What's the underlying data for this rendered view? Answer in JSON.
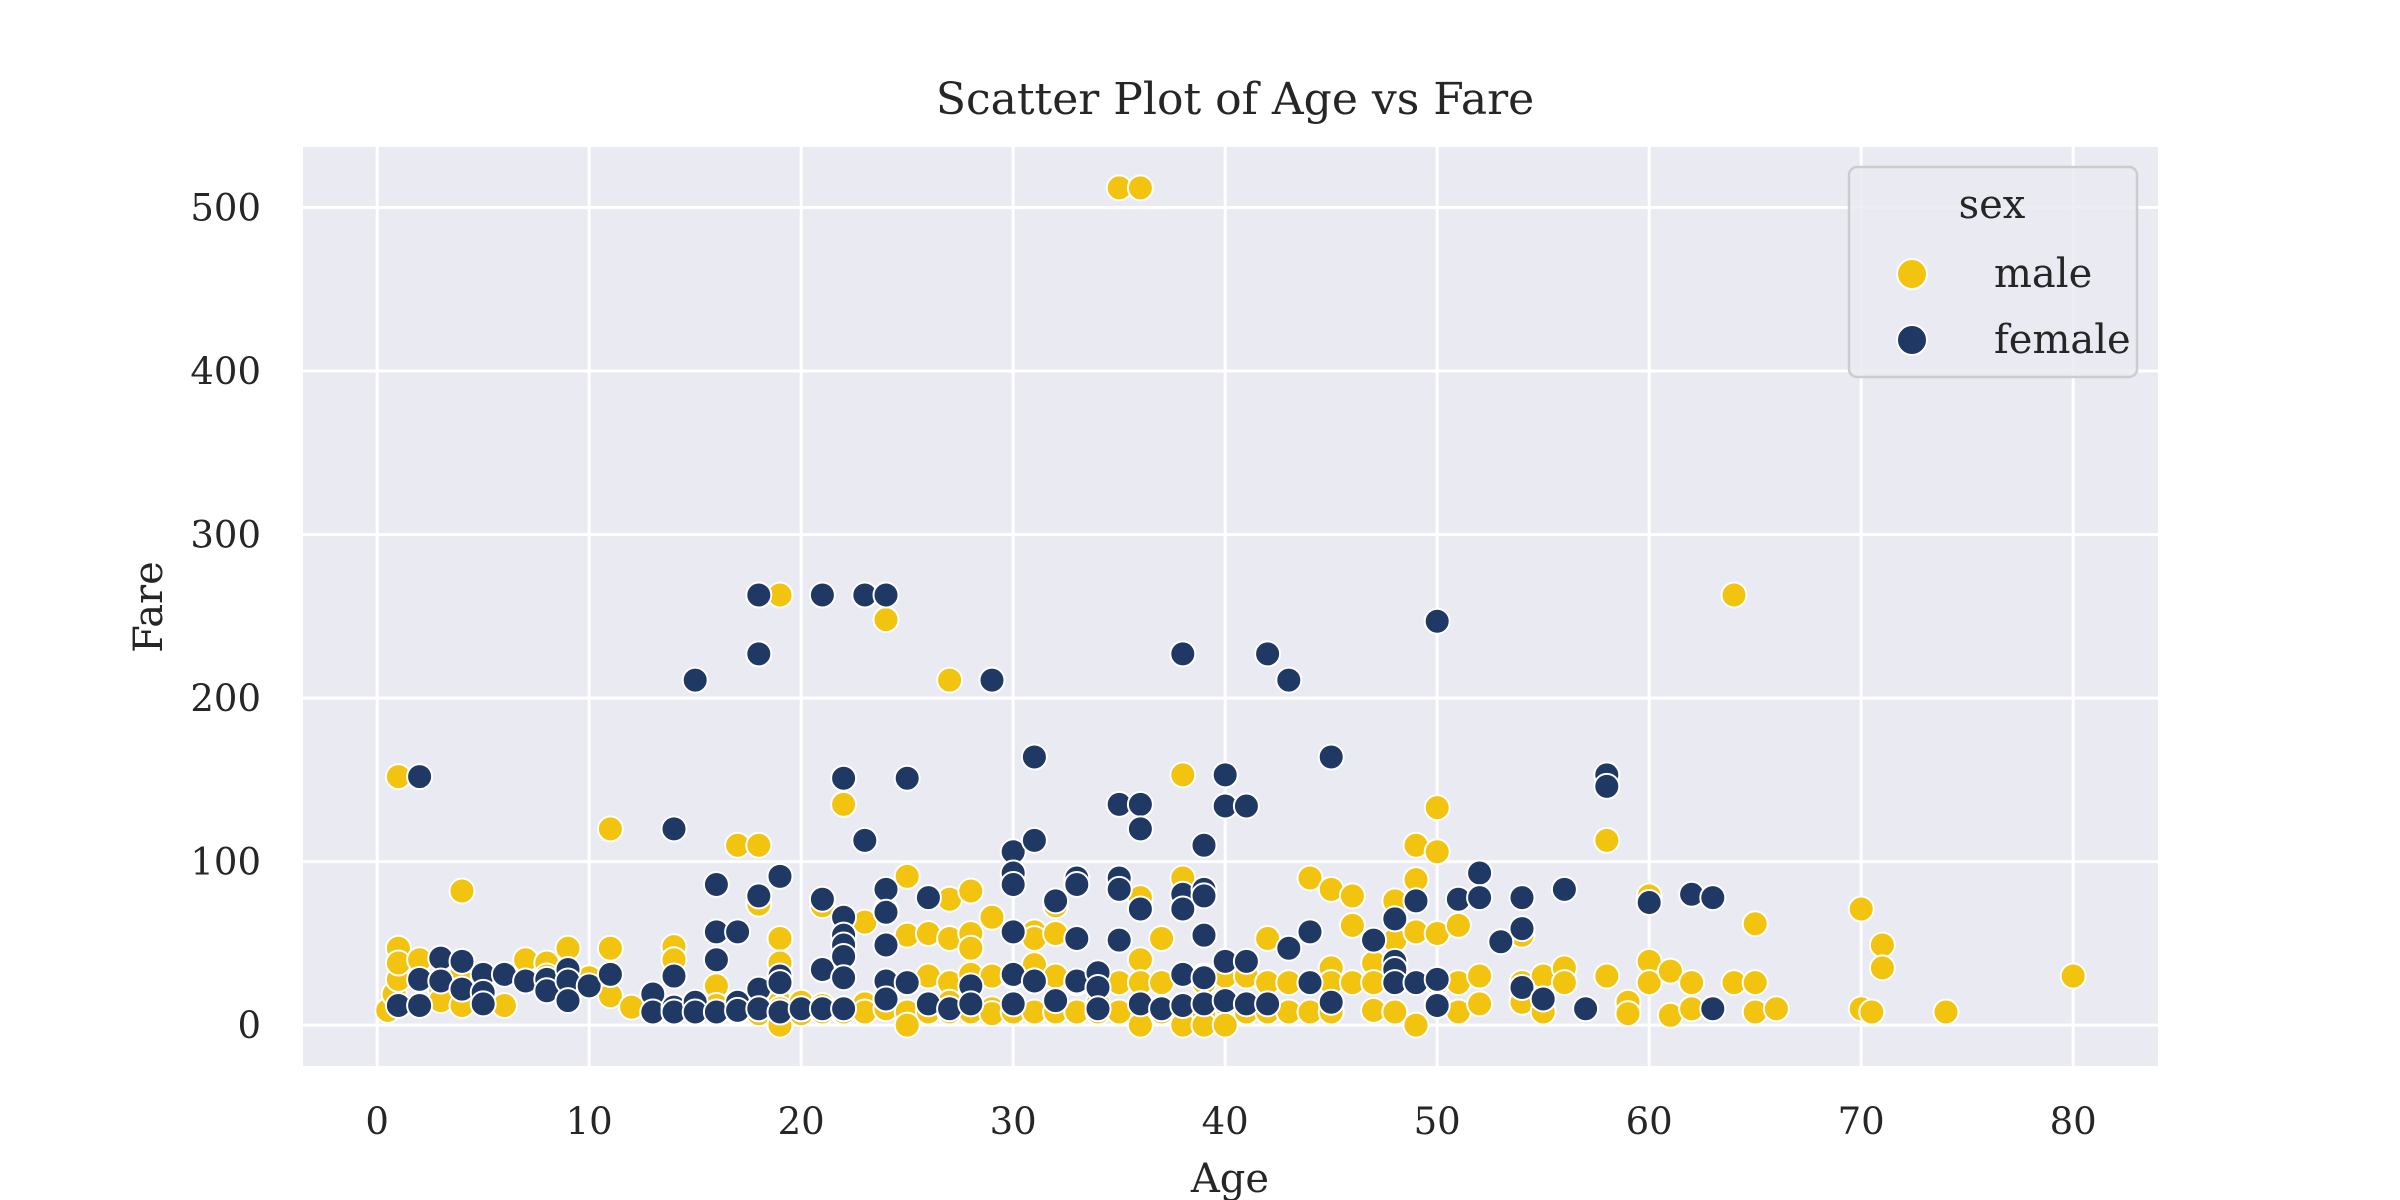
{
  "chart_data": {
    "type": "scatter",
    "title": "Scatter Plot of Age vs Fare",
    "xlabel": "Age",
    "ylabel": "Fare",
    "xlim": [
      -3.5,
      84
    ],
    "ylim": [
      -25,
      537
    ],
    "xticks": [
      0,
      10,
      20,
      30,
      40,
      50,
      60,
      70,
      80
    ],
    "yticks": [
      0,
      100,
      200,
      300,
      400,
      500
    ],
    "grid": true,
    "legend": {
      "title": "sex",
      "placement": "top-right"
    },
    "series": [
      {
        "name": "male",
        "color": "#F2C40F",
        "points": [
          [
            0.5,
            9
          ],
          [
            0.8,
            19
          ],
          [
            1,
            28
          ],
          [
            1,
            47
          ],
          [
            1,
            38
          ],
          [
            1,
            152
          ],
          [
            2,
            40
          ],
          [
            3,
            21
          ],
          [
            3,
            15
          ],
          [
            4,
            32
          ],
          [
            4,
            12
          ],
          [
            4,
            82
          ],
          [
            6,
            12
          ],
          [
            7,
            40
          ],
          [
            8,
            38
          ],
          [
            8,
            30
          ],
          [
            9,
            47
          ],
          [
            10,
            29
          ],
          [
            11,
            47
          ],
          [
            11,
            120
          ],
          [
            11,
            18
          ],
          [
            12,
            11
          ],
          [
            14,
            48
          ],
          [
            14,
            40
          ],
          [
            16,
            24
          ],
          [
            16,
            12
          ],
          [
            16,
            8
          ],
          [
            17,
            110
          ],
          [
            17,
            8
          ],
          [
            18,
            110
          ],
          [
            18,
            74
          ],
          [
            18,
            7
          ],
          [
            18,
            10
          ],
          [
            19,
            263
          ],
          [
            19,
            53
          ],
          [
            19,
            38
          ],
          [
            19,
            14
          ],
          [
            19,
            10
          ],
          [
            19,
            8
          ],
          [
            19,
            0
          ],
          [
            20,
            7
          ],
          [
            20,
            14
          ],
          [
            20,
            10
          ],
          [
            21,
            73
          ],
          [
            21,
            12
          ],
          [
            21,
            8
          ],
          [
            22,
            135
          ],
          [
            22,
            10
          ],
          [
            22,
            8
          ],
          [
            23,
            63
          ],
          [
            23,
            13
          ],
          [
            23,
            8
          ],
          [
            24,
            248
          ],
          [
            24,
            70
          ],
          [
            24,
            10
          ],
          [
            24,
            16
          ],
          [
            25,
            91
          ],
          [
            25,
            55
          ],
          [
            25,
            26
          ],
          [
            25,
            8
          ],
          [
            25,
            0
          ],
          [
            26,
            56
          ],
          [
            26,
            30
          ],
          [
            26,
            8
          ],
          [
            27,
            211
          ],
          [
            27,
            77
          ],
          [
            27,
            53
          ],
          [
            27,
            26
          ],
          [
            27,
            14
          ],
          [
            27,
            8
          ],
          [
            28,
            82
          ],
          [
            28,
            56
          ],
          [
            28,
            47
          ],
          [
            28,
            31
          ],
          [
            28,
            13
          ],
          [
            28,
            8
          ],
          [
            29,
            66
          ],
          [
            29,
            30
          ],
          [
            29,
            10
          ],
          [
            29,
            7
          ],
          [
            30,
            30
          ],
          [
            30,
            13
          ],
          [
            30,
            8
          ],
          [
            31,
            57
          ],
          [
            31,
            53
          ],
          [
            31,
            37
          ],
          [
            31,
            27
          ],
          [
            31,
            8
          ],
          [
            32,
            73
          ],
          [
            32,
            56
          ],
          [
            32,
            30
          ],
          [
            32,
            8
          ],
          [
            33,
            26
          ],
          [
            33,
            8
          ],
          [
            34,
            26
          ],
          [
            34,
            13
          ],
          [
            34,
            8
          ],
          [
            35,
            512
          ],
          [
            35,
            26
          ],
          [
            35,
            8
          ],
          [
            36,
            512
          ],
          [
            36,
            78
          ],
          [
            36,
            40
          ],
          [
            36,
            26
          ],
          [
            36,
            13
          ],
          [
            36,
            0
          ],
          [
            37,
            53
          ],
          [
            37,
            26
          ],
          [
            37,
            8
          ],
          [
            38,
            153
          ],
          [
            38,
            90
          ],
          [
            38,
            8
          ],
          [
            38,
            0
          ],
          [
            39,
            30
          ],
          [
            39,
            26
          ],
          [
            39,
            8
          ],
          [
            39,
            0
          ],
          [
            40,
            30
          ],
          [
            40,
            13
          ],
          [
            40,
            0
          ],
          [
            41,
            30
          ],
          [
            41,
            8
          ],
          [
            42,
            53
          ],
          [
            42,
            26
          ],
          [
            42,
            8
          ],
          [
            43,
            26
          ],
          [
            43,
            8
          ],
          [
            44,
            90
          ],
          [
            44,
            26
          ],
          [
            44,
            8
          ],
          [
            45,
            83
          ],
          [
            45,
            35
          ],
          [
            45,
            26
          ],
          [
            45,
            8
          ],
          [
            46,
            79
          ],
          [
            46,
            61
          ],
          [
            46,
            26
          ],
          [
            47,
            38
          ],
          [
            47,
            26
          ],
          [
            47,
            9
          ],
          [
            48,
            76
          ],
          [
            48,
            52
          ],
          [
            48,
            26
          ],
          [
            48,
            8
          ],
          [
            49,
            110
          ],
          [
            49,
            89
          ],
          [
            49,
            57
          ],
          [
            49,
            0
          ],
          [
            50,
            133
          ],
          [
            50,
            106
          ],
          [
            50,
            56
          ],
          [
            50,
            26
          ],
          [
            50,
            13
          ],
          [
            51,
            61
          ],
          [
            51,
            26
          ],
          [
            51,
            8
          ],
          [
            52,
            30
          ],
          [
            52,
            13
          ],
          [
            54,
            55
          ],
          [
            54,
            26
          ],
          [
            54,
            14
          ],
          [
            55,
            30
          ],
          [
            55,
            16
          ],
          [
            55,
            8
          ],
          [
            56,
            35
          ],
          [
            56,
            26
          ],
          [
            58,
            113
          ],
          [
            58,
            30
          ],
          [
            59,
            14
          ],
          [
            59,
            7
          ],
          [
            60,
            79
          ],
          [
            60,
            39
          ],
          [
            60,
            26
          ],
          [
            61,
            33
          ],
          [
            61,
            6
          ],
          [
            62,
            26
          ],
          [
            62,
            10
          ],
          [
            64,
            263
          ],
          [
            64,
            26
          ],
          [
            65,
            62
          ],
          [
            65,
            26
          ],
          [
            65,
            8
          ],
          [
            66,
            10
          ],
          [
            70,
            71
          ],
          [
            70,
            10
          ],
          [
            70.5,
            8
          ],
          [
            71,
            49
          ],
          [
            71,
            35
          ],
          [
            74,
            8
          ],
          [
            80,
            30
          ]
        ]
      },
      {
        "name": "female",
        "color": "#203864",
        "points": [
          [
            1,
            12
          ],
          [
            2,
            152
          ],
          [
            2,
            28
          ],
          [
            2,
            12
          ],
          [
            3,
            41
          ],
          [
            3,
            27
          ],
          [
            4,
            39
          ],
          [
            4,
            22
          ],
          [
            5,
            31
          ],
          [
            5,
            20
          ],
          [
            5,
            13
          ],
          [
            6,
            31
          ],
          [
            7,
            27
          ],
          [
            8,
            28
          ],
          [
            8,
            21
          ],
          [
            9,
            34
          ],
          [
            9,
            27
          ],
          [
            9,
            15
          ],
          [
            10,
            24
          ],
          [
            11,
            31
          ],
          [
            13,
            19
          ],
          [
            13,
            8
          ],
          [
            14,
            120
          ],
          [
            14,
            30
          ],
          [
            14,
            11
          ],
          [
            14,
            8
          ],
          [
            15,
            211
          ],
          [
            15,
            14
          ],
          [
            15,
            8
          ],
          [
            16,
            86
          ],
          [
            16,
            57
          ],
          [
            16,
            40
          ],
          [
            16,
            8
          ],
          [
            17,
            57
          ],
          [
            17,
            14
          ],
          [
            17,
            9
          ],
          [
            18,
            263
          ],
          [
            18,
            227
          ],
          [
            18,
            79
          ],
          [
            18,
            22
          ],
          [
            18,
            10
          ],
          [
            19,
            91
          ],
          [
            19,
            30
          ],
          [
            19,
            26
          ],
          [
            19,
            8
          ],
          [
            20,
            10
          ],
          [
            21,
            263
          ],
          [
            21,
            77
          ],
          [
            21,
            34
          ],
          [
            21,
            10
          ],
          [
            22,
            151
          ],
          [
            22,
            66
          ],
          [
            22,
            55
          ],
          [
            22,
            49
          ],
          [
            22,
            42
          ],
          [
            22,
            29
          ],
          [
            22,
            10
          ],
          [
            23,
            263
          ],
          [
            23,
            113
          ],
          [
            24,
            263
          ],
          [
            24,
            83
          ],
          [
            24,
            69
          ],
          [
            24,
            49
          ],
          [
            24,
            27
          ],
          [
            24,
            16
          ],
          [
            25,
            151
          ],
          [
            25,
            26
          ],
          [
            26,
            78
          ],
          [
            26,
            13
          ],
          [
            27,
            10
          ],
          [
            28,
            24
          ],
          [
            28,
            13
          ],
          [
            29,
            211
          ],
          [
            30,
            106
          ],
          [
            30,
            93
          ],
          [
            30,
            86
          ],
          [
            30,
            57
          ],
          [
            30,
            31
          ],
          [
            30,
            13
          ],
          [
            31,
            164
          ],
          [
            31,
            113
          ],
          [
            31,
            27
          ],
          [
            32,
            76
          ],
          [
            32,
            15
          ],
          [
            33,
            90
          ],
          [
            33,
            86
          ],
          [
            33,
            53
          ],
          [
            33,
            27
          ],
          [
            34,
            32
          ],
          [
            34,
            23
          ],
          [
            34,
            10
          ],
          [
            35,
            135
          ],
          [
            35,
            90
          ],
          [
            35,
            83
          ],
          [
            35,
            52
          ],
          [
            36,
            135
          ],
          [
            36,
            120
          ],
          [
            36,
            71
          ],
          [
            36,
            13
          ],
          [
            37,
            10
          ],
          [
            38,
            227
          ],
          [
            38,
            80
          ],
          [
            38,
            71
          ],
          [
            38,
            31
          ],
          [
            38,
            12
          ],
          [
            39,
            110
          ],
          [
            39,
            83
          ],
          [
            39,
            79
          ],
          [
            39,
            55
          ],
          [
            39,
            29
          ],
          [
            39,
            13
          ],
          [
            40,
            153
          ],
          [
            40,
            134
          ],
          [
            40,
            39
          ],
          [
            40,
            15
          ],
          [
            41,
            134
          ],
          [
            41,
            39
          ],
          [
            41,
            13
          ],
          [
            42,
            227
          ],
          [
            42,
            13
          ],
          [
            43,
            211
          ],
          [
            43,
            47
          ],
          [
            44,
            57
          ],
          [
            44,
            26
          ],
          [
            45,
            164
          ],
          [
            45,
            14
          ],
          [
            47,
            52
          ],
          [
            48,
            65
          ],
          [
            48,
            39
          ],
          [
            48,
            34
          ],
          [
            48,
            26
          ],
          [
            49,
            76
          ],
          [
            49,
            26
          ],
          [
            50,
            247
          ],
          [
            50,
            28
          ],
          [
            50,
            12
          ],
          [
            51,
            77
          ],
          [
            52,
            93
          ],
          [
            52,
            78
          ],
          [
            53,
            51
          ],
          [
            54,
            78
          ],
          [
            54,
            59
          ],
          [
            54,
            23
          ],
          [
            55,
            16
          ],
          [
            56,
            83
          ],
          [
            57,
            10
          ],
          [
            58,
            153
          ],
          [
            58,
            146
          ],
          [
            60,
            75
          ],
          [
            62,
            80
          ],
          [
            63,
            78
          ],
          [
            63,
            10
          ]
        ]
      }
    ]
  }
}
